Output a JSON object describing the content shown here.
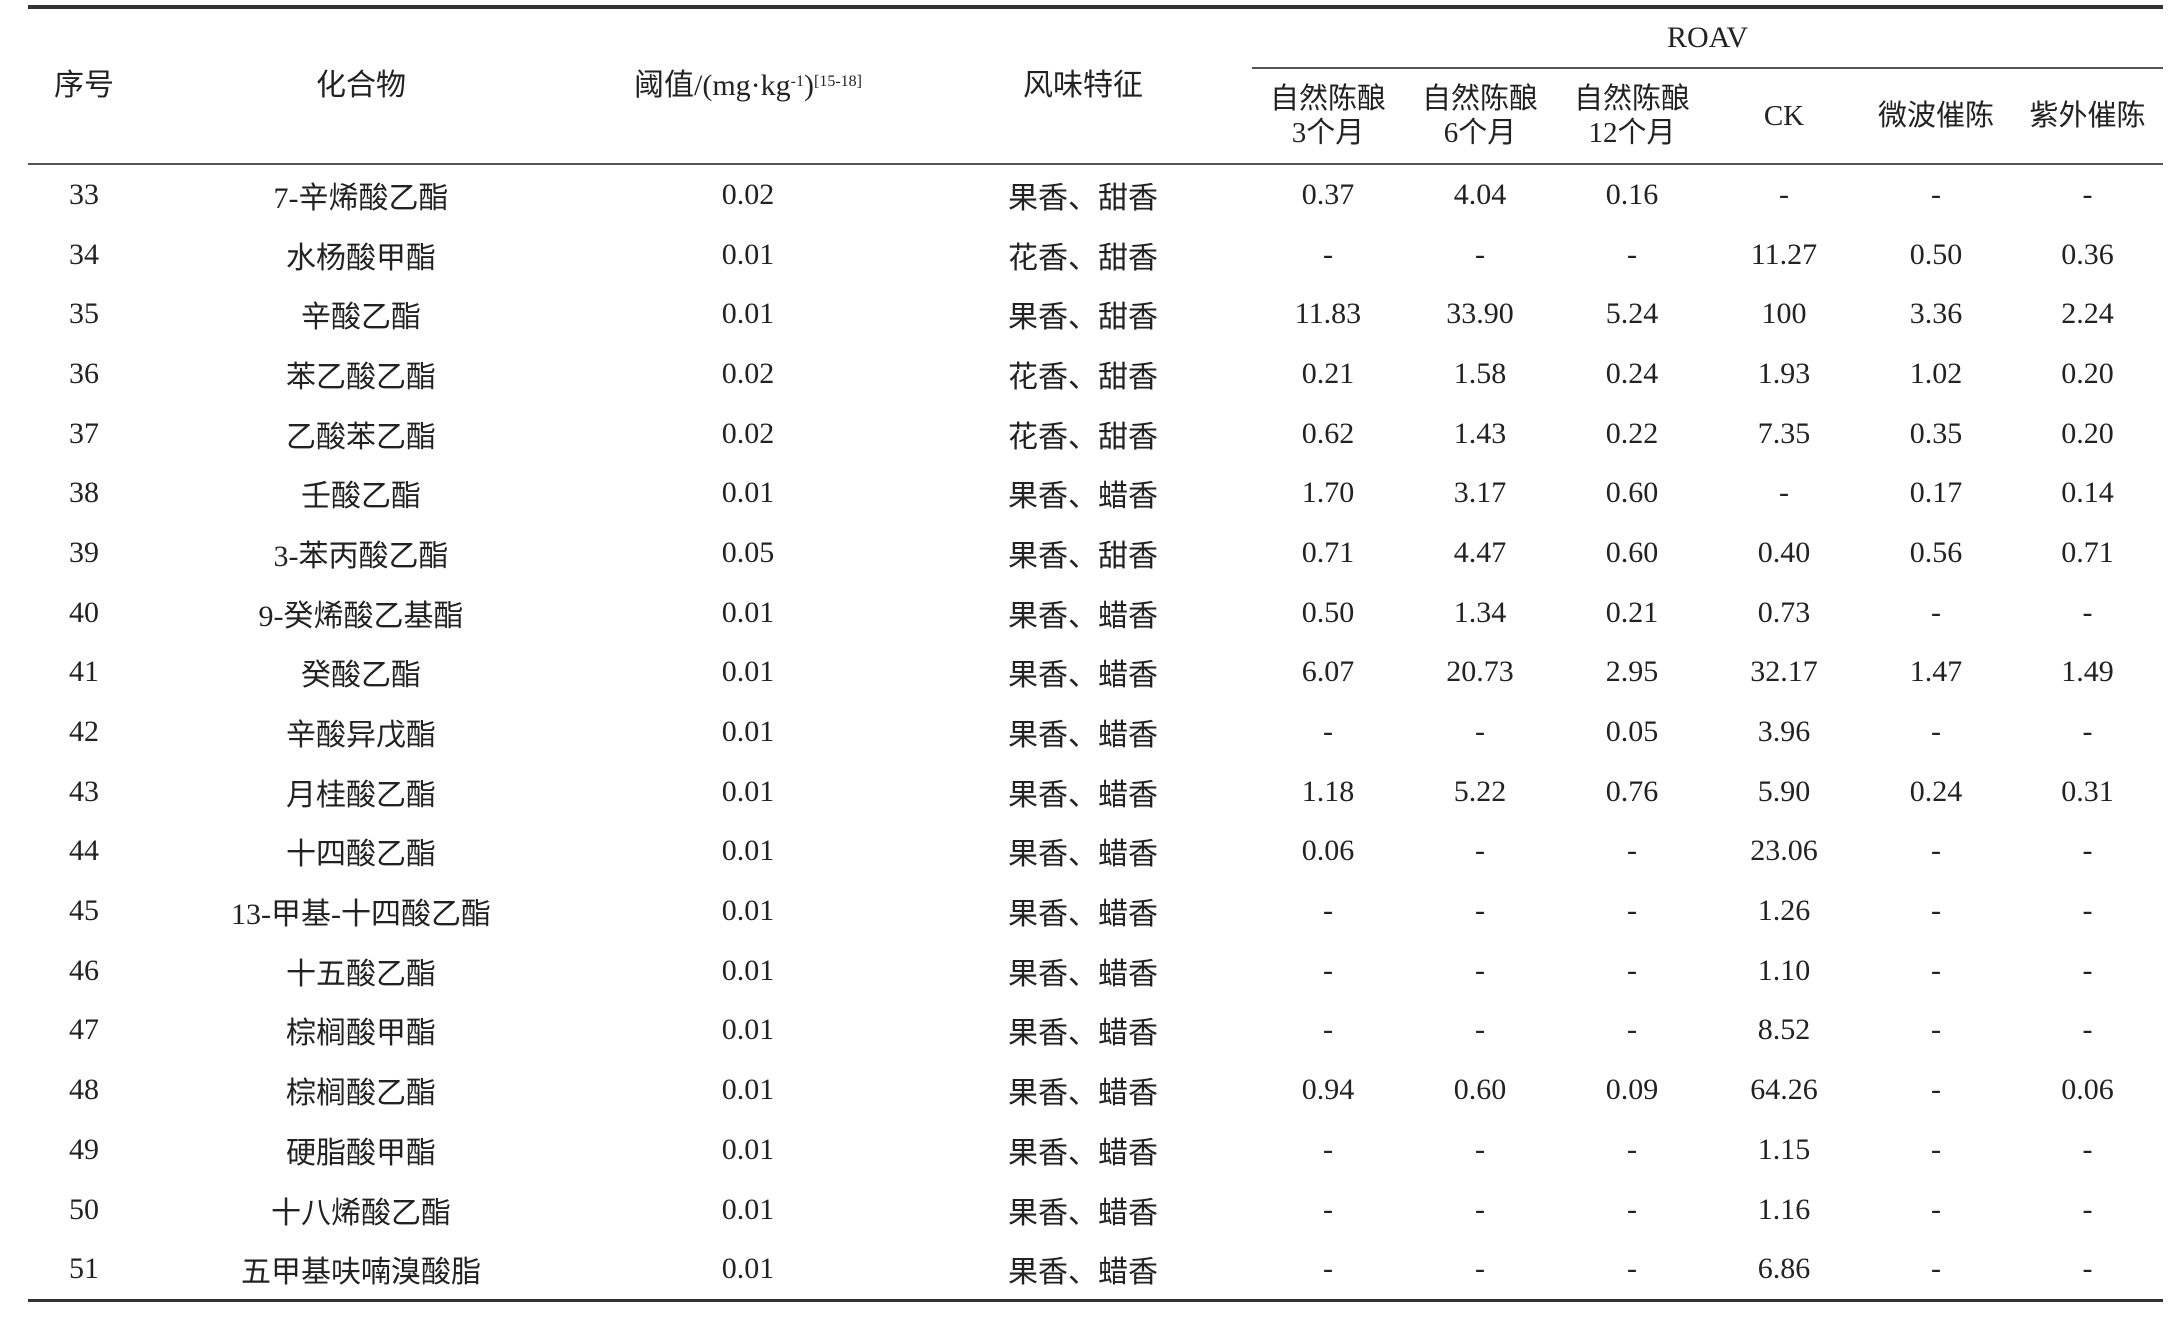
{
  "headers": {
    "index": "序号",
    "compound": "化合物",
    "threshold": "阈值/(mg·kg",
    "threshold_sup_unit": "-1",
    "threshold_close": ")",
    "threshold_ref": "[15-18]",
    "flavor": "风味特征",
    "roav": "ROAV",
    "roav_cols": [
      {
        "line1": "自然陈酿",
        "line2": "3个月"
      },
      {
        "line1": "自然陈酿",
        "line2": "6个月"
      },
      {
        "line1": "自然陈酿",
        "line2": "12个月"
      },
      {
        "line1": "CK",
        "line2": ""
      },
      {
        "line1": "微波催陈",
        "line2": ""
      },
      {
        "line1": "紫外催陈",
        "line2": ""
      }
    ]
  },
  "rows": [
    [
      "33",
      "7-辛烯酸乙酯",
      "0.02",
      "果香、甜香",
      "0.37",
      "4.04",
      "0.16",
      "-",
      "-",
      "-"
    ],
    [
      "34",
      "水杨酸甲酯",
      "0.01",
      "花香、甜香",
      "-",
      "-",
      "-",
      "11.27",
      "0.50",
      "0.36"
    ],
    [
      "35",
      "辛酸乙酯",
      "0.01",
      "果香、甜香",
      "11.83",
      "33.90",
      "5.24",
      "100",
      "3.36",
      "2.24"
    ],
    [
      "36",
      "苯乙酸乙酯",
      "0.02",
      "花香、甜香",
      "0.21",
      "1.58",
      "0.24",
      "1.93",
      "1.02",
      "0.20"
    ],
    [
      "37",
      "乙酸苯乙酯",
      "0.02",
      "花香、甜香",
      "0.62",
      "1.43",
      "0.22",
      "7.35",
      "0.35",
      "0.20"
    ],
    [
      "38",
      "壬酸乙酯",
      "0.01",
      "果香、蜡香",
      "1.70",
      "3.17",
      "0.60",
      "-",
      "0.17",
      "0.14"
    ],
    [
      "39",
      "3-苯丙酸乙酯",
      "0.05",
      "果香、甜香",
      "0.71",
      "4.47",
      "0.60",
      "0.40",
      "0.56",
      "0.71"
    ],
    [
      "40",
      "9-癸烯酸乙基酯",
      "0.01",
      "果香、蜡香",
      "0.50",
      "1.34",
      "0.21",
      "0.73",
      "-",
      "-"
    ],
    [
      "41",
      "癸酸乙酯",
      "0.01",
      "果香、蜡香",
      "6.07",
      "20.73",
      "2.95",
      "32.17",
      "1.47",
      "1.49"
    ],
    [
      "42",
      "辛酸异戊酯",
      "0.01",
      "果香、蜡香",
      "-",
      "-",
      "0.05",
      "3.96",
      "-",
      "-"
    ],
    [
      "43",
      "月桂酸乙酯",
      "0.01",
      "果香、蜡香",
      "1.18",
      "5.22",
      "0.76",
      "5.90",
      "0.24",
      "0.31"
    ],
    [
      "44",
      "十四酸乙酯",
      "0.01",
      "果香、蜡香",
      "0.06",
      "-",
      "-",
      "23.06",
      "-",
      "-"
    ],
    [
      "45",
      "13-甲基-十四酸乙酯",
      "0.01",
      "果香、蜡香",
      "-",
      "-",
      "-",
      "1.26",
      "-",
      "-"
    ],
    [
      "46",
      "十五酸乙酯",
      "0.01",
      "果香、蜡香",
      "-",
      "-",
      "-",
      "1.10",
      "-",
      "-"
    ],
    [
      "47",
      "棕榈酸甲酯",
      "0.01",
      "果香、蜡香",
      "-",
      "-",
      "-",
      "8.52",
      "-",
      "-"
    ],
    [
      "48",
      "棕榈酸乙酯",
      "0.01",
      "果香、蜡香",
      "0.94",
      "0.60",
      "0.09",
      "64.26",
      "-",
      "0.06"
    ],
    [
      "49",
      "硬脂酸甲酯",
      "0.01",
      "果香、蜡香",
      "-",
      "-",
      "-",
      "1.15",
      "-",
      "-"
    ],
    [
      "50",
      "十八烯酸乙酯",
      "0.01",
      "果香、蜡香",
      "-",
      "-",
      "-",
      "1.16",
      "-",
      "-"
    ],
    [
      "51",
      "五甲基呋喃溴酸脂",
      "0.01",
      "果香、蜡香",
      "-",
      "-",
      "-",
      "6.86",
      "-",
      "-"
    ]
  ]
}
